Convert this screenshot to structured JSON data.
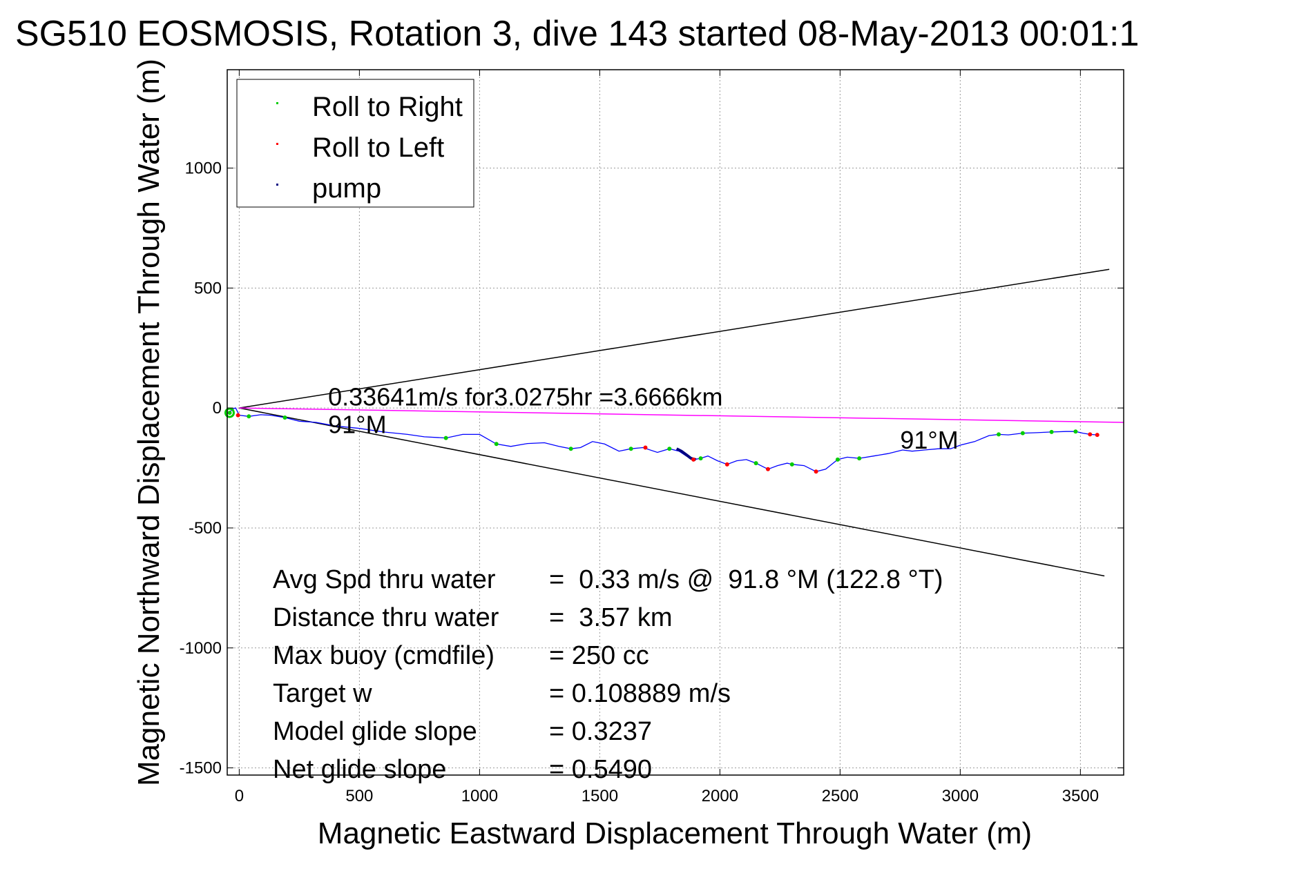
{
  "chart_data": {
    "type": "line",
    "title": "SG510 EOSMOSIS, Rotation 3, dive 143 started 08-May-2013 00:01:1",
    "xlabel": "Magnetic Eastward Displacement Through Water (m)",
    "ylabel": "Magnetic Northward Displacement Through Water (m)",
    "xlim": [
      -50,
      3680
    ],
    "ylim": [
      -1530,
      1410
    ],
    "xticks": [
      0,
      500,
      1000,
      1500,
      2000,
      2500,
      3000,
      3500
    ],
    "yticks": [
      -1500,
      -1000,
      -500,
      0,
      500,
      1000
    ],
    "xtick_labels": [
      "0",
      "500",
      "1000",
      "1500",
      "2000",
      "2500",
      "3000",
      "3500"
    ],
    "ytick_labels": [
      "-1500",
      "-1000",
      "-500",
      "0",
      "500",
      "1000"
    ],
    "grid": true,
    "legend_position": "top-left",
    "legend": [
      {
        "label": "Roll to Right",
        "color": "#00cc00"
      },
      {
        "label": "Roll to Left",
        "color": "#ff0000"
      },
      {
        "label": "pump",
        "color": "#000080"
      }
    ],
    "track_color": "#0000ff",
    "cone_color": "#000000",
    "heading_line_color": "#ff00ff",
    "track": {
      "x": [
        -40,
        -30,
        -15,
        0,
        40,
        90,
        130,
        190,
        250,
        320,
        400,
        500,
        600,
        700,
        770,
        860,
        930,
        1000,
        1070,
        1130,
        1200,
        1270,
        1330,
        1380,
        1420,
        1470,
        1520,
        1580,
        1630,
        1680,
        1740,
        1790,
        1830,
        1860,
        1890,
        1920,
        1950,
        1990,
        2030,
        2070,
        2110,
        2150,
        2200,
        2240,
        2280,
        2300,
        2350,
        2400,
        2440,
        2490,
        2530,
        2580,
        2640,
        2700,
        2760,
        2800,
        2850,
        2910,
        2960,
        3000,
        3060,
        3120,
        3160,
        3200,
        3260,
        3320,
        3380,
        3440,
        3480,
        3510,
        3540,
        3570
      ],
      "y": [
        -20,
        -5,
        0,
        -30,
        -35,
        -28,
        -30,
        -40,
        -55,
        -60,
        -75,
        -85,
        -100,
        -110,
        -120,
        -125,
        -110,
        -110,
        -150,
        -160,
        -148,
        -145,
        -160,
        -170,
        -165,
        -140,
        -150,
        -180,
        -170,
        -165,
        -185,
        -170,
        -180,
        -200,
        -215,
        -210,
        -200,
        -220,
        -235,
        -220,
        -215,
        -230,
        -255,
        -240,
        -230,
        -235,
        -240,
        -265,
        -255,
        -215,
        -205,
        -210,
        -200,
        -190,
        -175,
        -180,
        -175,
        -170,
        -170,
        -155,
        -140,
        -115,
        -110,
        -112,
        -105,
        -103,
        -100,
        -98,
        -98,
        -105,
        -110,
        -112
      ]
    },
    "roll_right_points": {
      "x": [
        -40,
        40,
        190,
        860,
        1070,
        1380,
        1630,
        1790,
        1920,
        2150,
        2300,
        2490,
        2580,
        3160,
        3260,
        3380,
        3480
      ],
      "y": [
        -20,
        -35,
        -40,
        -125,
        -150,
        -170,
        -170,
        -170,
        -210,
        -230,
        -235,
        -215,
        -210,
        -110,
        -105,
        -100,
        -98
      ]
    },
    "roll_left_points": {
      "x": [
        -5,
        1690,
        1890,
        2030,
        2200,
        2400,
        3540,
        3570
      ],
      "y": [
        -30,
        -165,
        -215,
        -235,
        -255,
        -265,
        -110,
        -112
      ]
    },
    "pump_segment": {
      "x": [
        1820,
        1840,
        1860,
        1880,
        1900
      ],
      "y": [
        -170,
        -180,
        -195,
        -210,
        -215
      ]
    },
    "cone_lines": [
      {
        "x": [
          0,
          3620
        ],
        "y": [
          0,
          578
        ]
      },
      {
        "x": [
          0,
          3600
        ],
        "y": [
          0,
          -700
        ]
      }
    ],
    "heading_line": {
      "x": [
        0,
        3680
      ],
      "y": [
        0,
        -60
      ]
    },
    "annotations": [
      {
        "text": "0.33641m/s for3.0275hr =3.6666km",
        "x": 370,
        "y": 10
      },
      {
        "text": "91°M",
        "x": 370,
        "y": -105
      },
      {
        "text": "91°M",
        "x": 2750,
        "y": -170
      }
    ],
    "stats": [
      {
        "label": "Avg Spd thru water",
        "value": "=  0.33 m/s @  91.8 °M (122.8 °T)"
      },
      {
        "label": "Distance thru water",
        "value": "=  3.57 km"
      },
      {
        "label": "Max buoy (cmdfile)",
        "value": "= 250 cc"
      },
      {
        "label": "Target w",
        "value": "= 0.108889 m/s"
      },
      {
        "label": "Model glide slope",
        "value": "= 0.3237"
      },
      {
        "label": "Net glide slope",
        "value": "= 0.5490"
      }
    ]
  }
}
